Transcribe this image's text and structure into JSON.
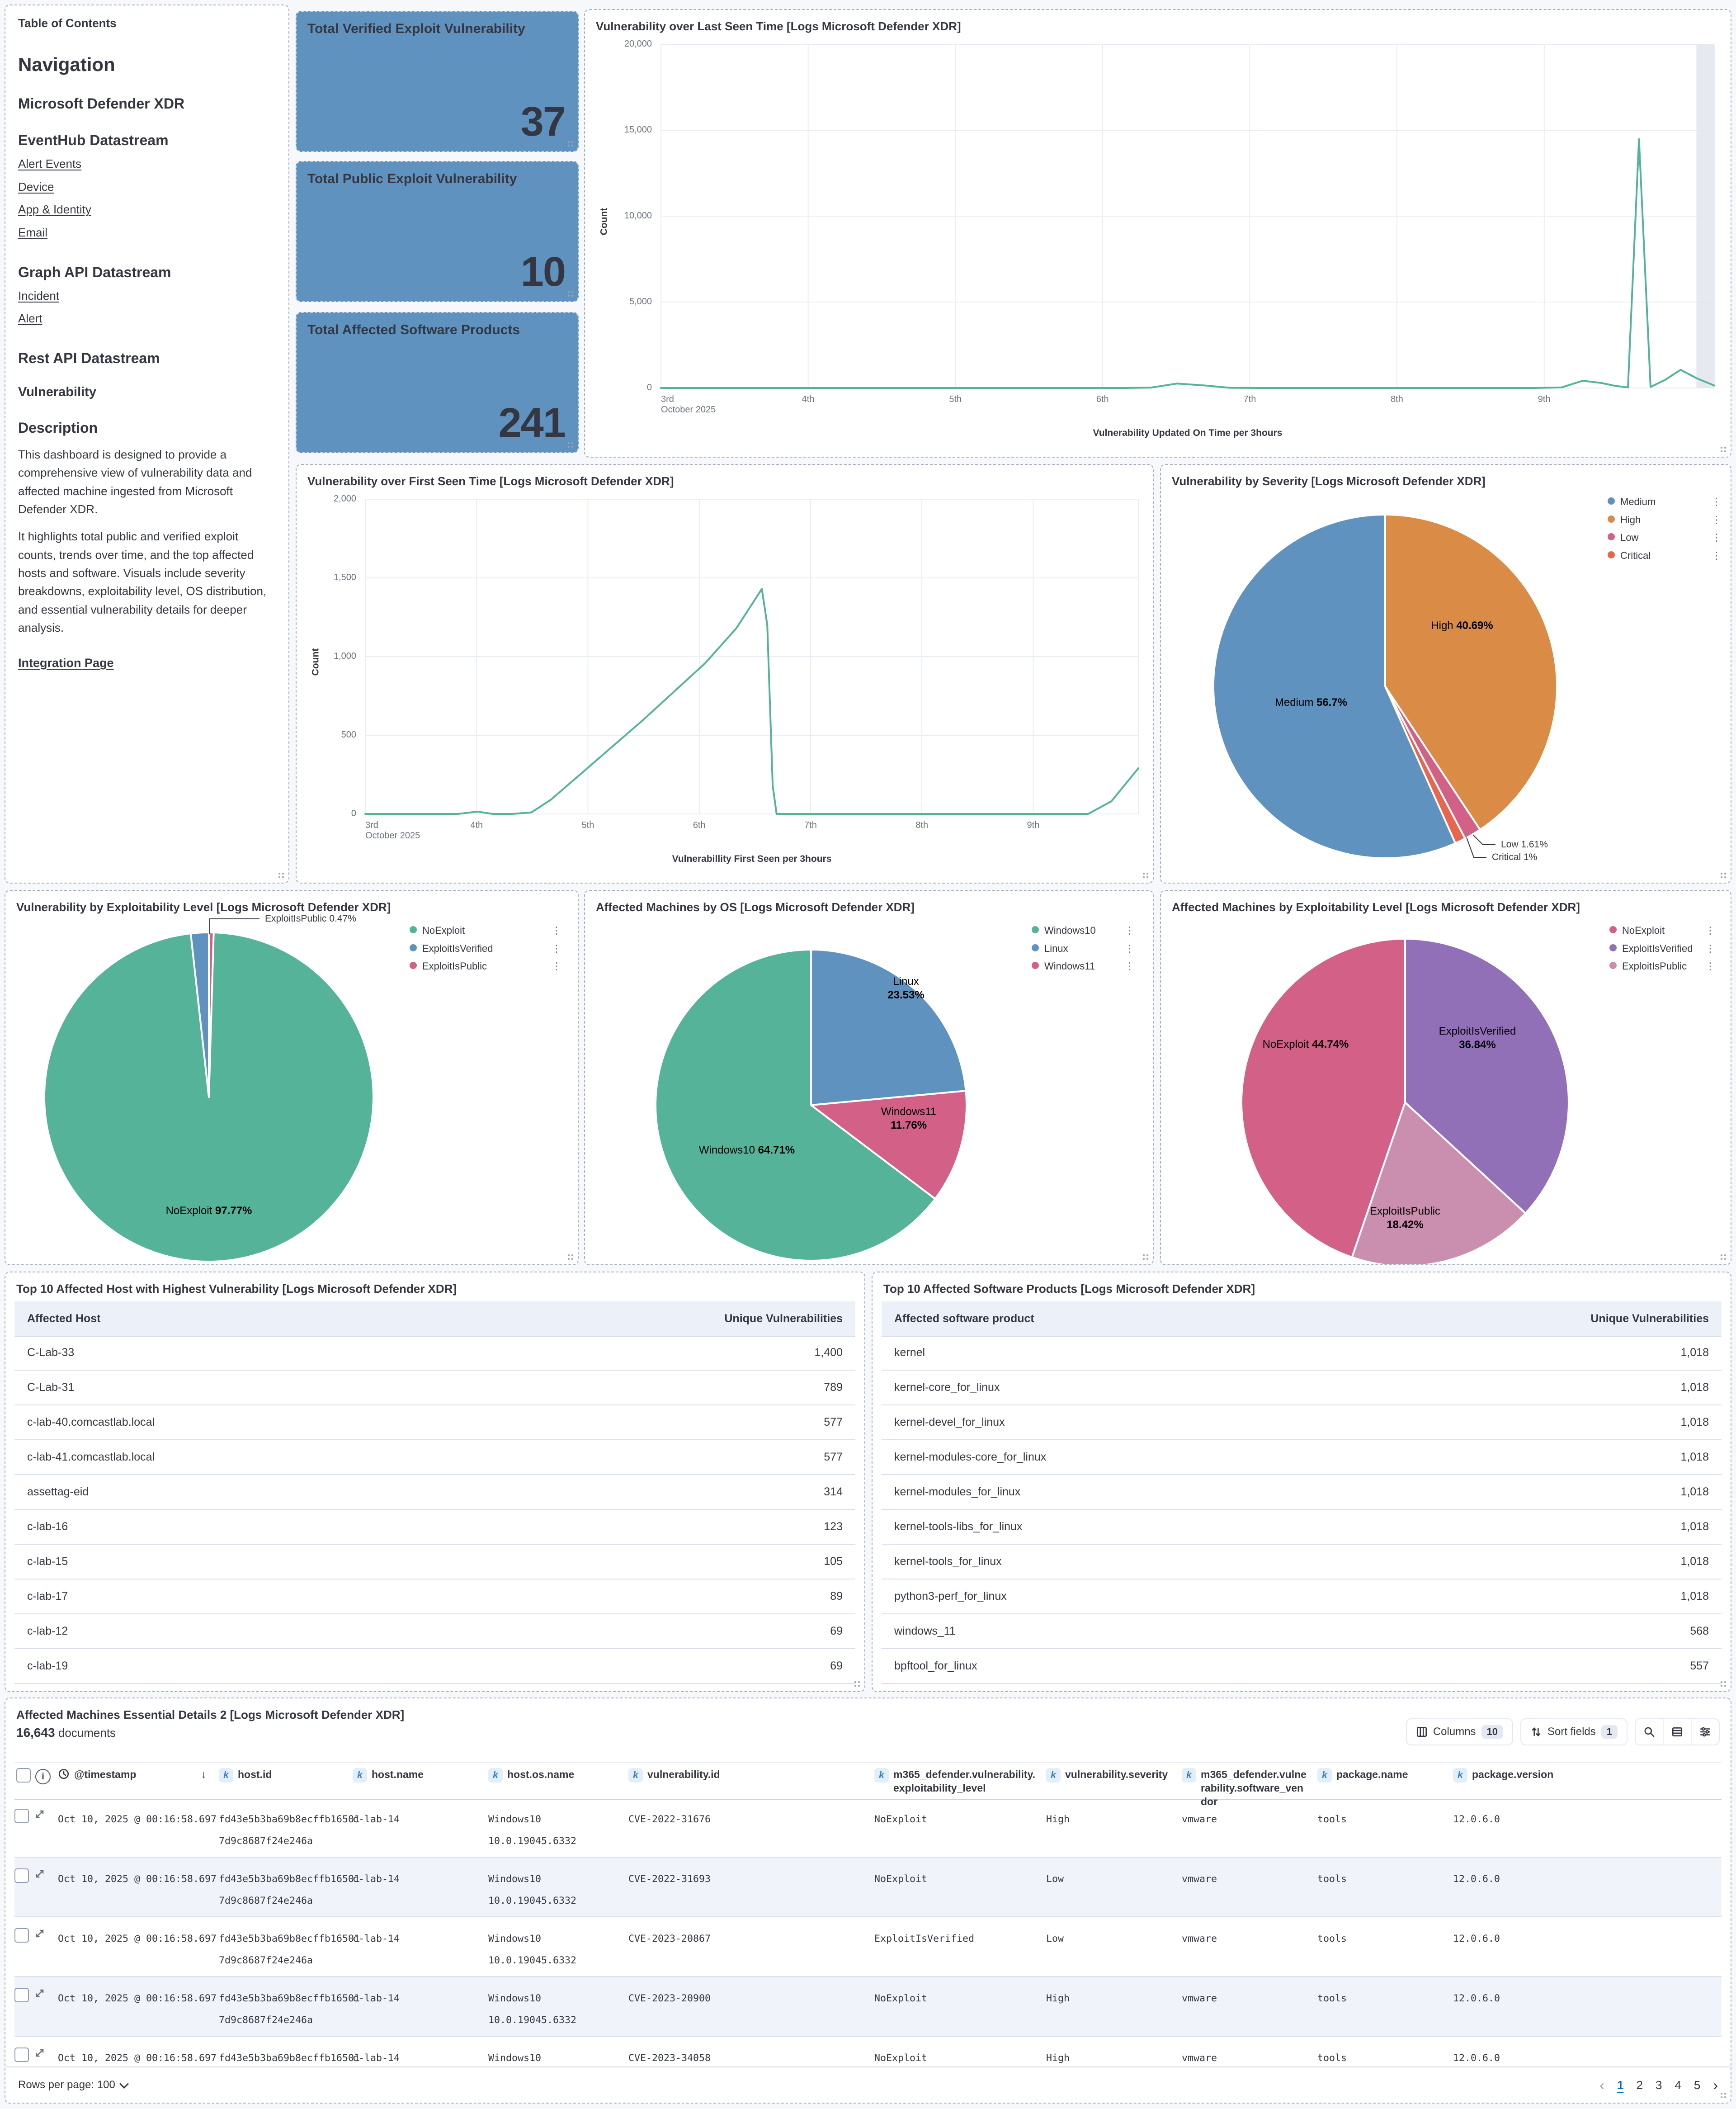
{
  "toc": {
    "panel_title": "Table of Contents",
    "heading": "Navigation",
    "section_defender": "Microsoft Defender XDR",
    "section_eventhub": "EventHub Datastream",
    "eventhub_links": [
      "Alert Events",
      "Device",
      "App & Identity",
      "Email"
    ],
    "section_graph": "Graph API Datastream",
    "graph_links": [
      "Incident",
      "Alert"
    ],
    "section_rest": "Rest API Datastream",
    "sub_vulnerability": "Vulnerability",
    "section_description": "Description",
    "paragraph1": "This dashboard is designed to provide a comprehensive view of vulnerability data and affected machine ingested from Microsoft Defender XDR.",
    "paragraph2": "It highlights total public and verified exploit counts, trends over time, and the top affected hosts and software. Visuals include severity breakdowns, exploitability level, OS distribution, and essential vulnerability details for deeper analysis.",
    "bottom_link": "Integration Page"
  },
  "metric_tiles": [
    {
      "label": "Total Verified Exploit Vulnerability",
      "value": "37"
    },
    {
      "label": "Total Public Exploit Vulnerability",
      "value": "10"
    },
    {
      "label": "Total Affected Software Products",
      "value": "241"
    }
  ],
  "line_charts": {
    "last_seen": {
      "type": "line",
      "title": "Vulnerability over Last Seen Time [Logs Microsoft Defender XDR]",
      "y_label": "Count",
      "x_label": "Vulnerability Updated On Time per 3hours",
      "y_max": 20000,
      "y_ticks": [
        "20,000",
        "15,000",
        "10,000",
        "5,000",
        "0"
      ],
      "x_ticks": [
        {
          "f": 0,
          "label": "3rd",
          "sub": "October 2025"
        },
        {
          "f": 0.1397,
          "label": "4th"
        },
        {
          "f": 0.2795,
          "label": "5th"
        },
        {
          "f": 0.4192,
          "label": "6th"
        },
        {
          "f": 0.559,
          "label": "7th"
        },
        {
          "f": 0.6987,
          "label": "8th"
        },
        {
          "f": 0.8385,
          "label": "9th"
        }
      ],
      "color": "#54B399",
      "partial_band": [
        0.983,
        1.0
      ],
      "points": [
        [
          0,
          0
        ],
        [
          0.05,
          0
        ],
        [
          0.1,
          0
        ],
        [
          0.15,
          0
        ],
        [
          0.2,
          0
        ],
        [
          0.25,
          0
        ],
        [
          0.3,
          0
        ],
        [
          0.35,
          0
        ],
        [
          0.4,
          0
        ],
        [
          0.44,
          0
        ],
        [
          0.465,
          20
        ],
        [
          0.49,
          260
        ],
        [
          0.515,
          150
        ],
        [
          0.54,
          10
        ],
        [
          0.57,
          0
        ],
        [
          0.62,
          0
        ],
        [
          0.66,
          0
        ],
        [
          0.7,
          0
        ],
        [
          0.75,
          0
        ],
        [
          0.8,
          0
        ],
        [
          0.83,
          0
        ],
        [
          0.855,
          30
        ],
        [
          0.875,
          420
        ],
        [
          0.893,
          290
        ],
        [
          0.906,
          120
        ],
        [
          0.918,
          30
        ],
        [
          0.9285,
          14480
        ],
        [
          0.9395,
          60
        ],
        [
          0.9535,
          480
        ],
        [
          0.968,
          1060
        ],
        [
          0.9835,
          560
        ],
        [
          1,
          140
        ]
      ]
    },
    "first_seen": {
      "type": "line",
      "title": "Vulnerability over First Seen Time [Logs Microsoft Defender XDR]",
      "y_label": "Count",
      "x_label": "Vulnerabillity First Seen per 3hours",
      "y_max": 2000,
      "y_ticks": [
        "2,000",
        "1,500",
        "1,000",
        "500",
        "0"
      ],
      "x_ticks": [
        {
          "f": 0,
          "label": "3rd",
          "sub": "October 2025"
        },
        {
          "f": 0.144,
          "label": "4th"
        },
        {
          "f": 0.288,
          "label": "5th"
        },
        {
          "f": 0.432,
          "label": "6th"
        },
        {
          "f": 0.576,
          "label": "7th"
        },
        {
          "f": 0.72,
          "label": "8th"
        },
        {
          "f": 0.864,
          "label": "9th"
        }
      ],
      "color": "#54B399",
      "points": [
        [
          0,
          0
        ],
        [
          0.04,
          0
        ],
        [
          0.08,
          0
        ],
        [
          0.12,
          0
        ],
        [
          0.145,
          15
        ],
        [
          0.165,
          0
        ],
        [
          0.19,
          0
        ],
        [
          0.215,
          10
        ],
        [
          0.24,
          90
        ],
        [
          0.28,
          260
        ],
        [
          0.32,
          430
        ],
        [
          0.36,
          600
        ],
        [
          0.4,
          780
        ],
        [
          0.44,
          960
        ],
        [
          0.48,
          1180
        ],
        [
          0.513,
          1430
        ],
        [
          0.52,
          1200
        ],
        [
          0.527,
          180
        ],
        [
          0.532,
          0
        ],
        [
          0.56,
          0
        ],
        [
          0.6,
          0
        ],
        [
          0.65,
          0
        ],
        [
          0.7,
          0
        ],
        [
          0.75,
          0
        ],
        [
          0.8,
          0
        ],
        [
          0.85,
          0
        ],
        [
          0.9,
          0
        ],
        [
          0.935,
          0
        ],
        [
          0.965,
          80
        ],
        [
          1,
          290
        ]
      ]
    }
  },
  "pie_charts": {
    "severity": {
      "type": "pie",
      "title": "Vulnerability by Severity [Logs Microsoft Defender XDR]",
      "slices": [
        {
          "label": "High",
          "pct": 40.69,
          "color": "#DA8B45"
        },
        {
          "label": "Low",
          "pct": 1.61,
          "color": "#D36086"
        },
        {
          "label": "Critical",
          "pct": 1.0,
          "color": "#E7664C"
        },
        {
          "label": "Medium",
          "pct": 56.7,
          "color": "#6092C0"
        }
      ],
      "legend": [
        {
          "label": "Medium",
          "color": "#6092C0"
        },
        {
          "label": "High",
          "color": "#DA8B45"
        },
        {
          "label": "Low",
          "color": "#D36086"
        },
        {
          "label": "Critical",
          "color": "#E7664C"
        }
      ],
      "inside_labels": [
        {
          "name": "High",
          "pct": "40.69%"
        },
        {
          "name": "Medium",
          "pct": "56.7%"
        }
      ],
      "callout_labels": [
        {
          "name": "Low",
          "pct": "1.61%"
        },
        {
          "name": "Critical",
          "pct": "1%"
        }
      ]
    },
    "exploit_level": {
      "type": "pie",
      "title": "Vulnerability by Exploitability Level [Logs Microsoft Defender XDR]",
      "slices": [
        {
          "label": "ExploitIsPublic",
          "pct": 0.47,
          "color": "#D36086"
        },
        {
          "label": "NoExploit",
          "pct": 97.77,
          "color": "#54B399"
        },
        {
          "label": "ExploitIsVerified",
          "pct": 1.76,
          "color": "#6092C0"
        }
      ],
      "legend": [
        {
          "label": "NoExploit",
          "color": "#54B399"
        },
        {
          "label": "ExploitIsVerified",
          "color": "#6092C0"
        },
        {
          "label": "ExploitIsPublic",
          "color": "#D36086"
        }
      ],
      "inside_labels": [
        {
          "name": "NoExploit",
          "pct": "97.77%"
        }
      ],
      "callout_labels": [
        {
          "name": "ExploitIsPublic",
          "pct": "0.47%"
        }
      ]
    },
    "os": {
      "type": "pie",
      "title": "Affected Machines by OS [Logs Microsoft Defender XDR]",
      "slices": [
        {
          "label": "Linux",
          "pct": 23.53,
          "color": "#6092C0"
        },
        {
          "label": "Windows11",
          "pct": 11.76,
          "color": "#D36086"
        },
        {
          "label": "Windows10",
          "pct": 64.71,
          "color": "#54B399"
        }
      ],
      "legend": [
        {
          "label": "Windows10",
          "color": "#54B399"
        },
        {
          "label": "Linux",
          "color": "#6092C0"
        },
        {
          "label": "Windows11",
          "color": "#D36086"
        }
      ],
      "inside_labels": [
        {
          "name": "Linux",
          "pct": "23.53%",
          "stacked": true
        },
        {
          "name": "Windows11",
          "pct": "11.76%",
          "stacked": true
        },
        {
          "name": "Windows10",
          "pct": "64.71%"
        }
      ],
      "callout_labels": []
    },
    "machines_exploit": {
      "type": "pie",
      "title": "Affected Machines by Exploitability Level [Logs Microsoft Defender XDR]",
      "slices": [
        {
          "label": "ExploitIsVerified",
          "pct": 36.84,
          "color": "#9170B8"
        },
        {
          "label": "ExploitIsPublic",
          "pct": 18.42,
          "color": "#CA8EAE"
        },
        {
          "label": "NoExploit",
          "pct": 44.74,
          "color": "#D36086"
        }
      ],
      "legend": [
        {
          "label": "NoExploit",
          "color": "#D36086"
        },
        {
          "label": "ExploitIsVerified",
          "color": "#9170B8"
        },
        {
          "label": "ExploitIsPublic",
          "color": "#CA8EAE"
        }
      ],
      "inside_labels": [
        {
          "name": "ExploitIsVerified",
          "pct": "36.84%",
          "stacked": true
        },
        {
          "name": "ExploitIsPublic",
          "pct": "18.42%",
          "stacked": true
        },
        {
          "name": "NoExploit",
          "pct": "44.74%"
        }
      ],
      "callout_labels": []
    }
  },
  "host_table": {
    "title": "Top 10 Affected Host with Highest Vulnerability [Logs Microsoft Defender XDR]",
    "col1": "Affected Host",
    "col2": "Unique Vulnerabilities",
    "rows": [
      [
        "C-Lab-33",
        "1,400"
      ],
      [
        "C-Lab-31",
        "789"
      ],
      [
        "c-lab-40.comcastlab.local",
        "577"
      ],
      [
        "c-lab-41.comcastlab.local",
        "577"
      ],
      [
        "assettag-eid",
        "314"
      ],
      [
        "c-lab-16",
        "123"
      ],
      [
        "c-lab-15",
        "105"
      ],
      [
        "c-lab-17",
        "89"
      ],
      [
        "c-lab-12",
        "69"
      ],
      [
        "c-lab-19",
        "69"
      ]
    ]
  },
  "software_table": {
    "title": "Top 10 Affected Software Products [Logs Microsoft Defender XDR]",
    "col1": "Affected software product",
    "col2": "Unique Vulnerabilities",
    "rows": [
      [
        "kernel",
        "1,018"
      ],
      [
        "kernel-core_for_linux",
        "1,018"
      ],
      [
        "kernel-devel_for_linux",
        "1,018"
      ],
      [
        "kernel-modules-core_for_linux",
        "1,018"
      ],
      [
        "kernel-modules_for_linux",
        "1,018"
      ],
      [
        "kernel-tools-libs_for_linux",
        "1,018"
      ],
      [
        "kernel-tools_for_linux",
        "1,018"
      ],
      [
        "python3-perf_for_linux",
        "1,018"
      ],
      [
        "windows_11",
        "568"
      ],
      [
        "bpftool_for_linux",
        "557"
      ]
    ]
  },
  "doc_table": {
    "title": "Affected Machines Essential Details 2 [Logs Microsoft Defender XDR]",
    "doc_count": "16,643",
    "doc_word": "documents",
    "columns_label": "Columns",
    "columns_count": "10",
    "sort_label": "Sort fields",
    "sort_count": "1",
    "columns": [
      {
        "label": "@timestamp",
        "type": "time"
      },
      {
        "label": "host.id",
        "type": "k"
      },
      {
        "label": "host.name",
        "type": "k"
      },
      {
        "label": "host.os.name",
        "type": "k"
      },
      {
        "label": "vulnerability.id",
        "type": "k"
      },
      {
        "label": "m365_defender.vulnerability.exploitability_level",
        "type": "k"
      },
      {
        "label": "vulnerability.severity",
        "type": "k"
      },
      {
        "label": "m365_defender.vulnerability.software_vendor",
        "type": "k"
      },
      {
        "label": "package.name",
        "type": "k"
      },
      {
        "label": "package.version",
        "type": "k"
      }
    ],
    "rows": [
      {
        "timestamp": "Oct 10, 2025 @ 00:16:58.697",
        "host_id": [
          "fd43e5b3ba69b8ecffb16501",
          "7d9c8687f24e246a"
        ],
        "host_name": "c-lab-14",
        "os": [
          "Windows10",
          "10.0.19045.6332"
        ],
        "vuln_id": "CVE-2022-31676",
        "exploit": "NoExploit",
        "severity": "High",
        "vendor": "vmware",
        "package": "tools",
        "version": "12.0.6.0"
      },
      {
        "timestamp": "Oct 10, 2025 @ 00:16:58.697",
        "host_id": [
          "fd43e5b3ba69b8ecffb16501",
          "7d9c8687f24e246a"
        ],
        "host_name": "c-lab-14",
        "os": [
          "Windows10",
          "10.0.19045.6332"
        ],
        "vuln_id": "CVE-2022-31693",
        "exploit": "NoExploit",
        "severity": "Low",
        "vendor": "vmware",
        "package": "tools",
        "version": "12.0.6.0"
      },
      {
        "timestamp": "Oct 10, 2025 @ 00:16:58.697",
        "host_id": [
          "fd43e5b3ba69b8ecffb16501",
          "7d9c8687f24e246a"
        ],
        "host_name": "c-lab-14",
        "os": [
          "Windows10",
          "10.0.19045.6332"
        ],
        "vuln_id": "CVE-2023-20867",
        "exploit": "ExploitIsVerified",
        "severity": "Low",
        "vendor": "vmware",
        "package": "tools",
        "version": "12.0.6.0"
      },
      {
        "timestamp": "Oct 10, 2025 @ 00:16:58.697",
        "host_id": [
          "fd43e5b3ba69b8ecffb16501",
          "7d9c8687f24e246a"
        ],
        "host_name": "c-lab-14",
        "os": [
          "Windows10",
          "10.0.19045.6332"
        ],
        "vuln_id": "CVE-2023-20900",
        "exploit": "NoExploit",
        "severity": "High",
        "vendor": "vmware",
        "package": "tools",
        "version": "12.0.6.0"
      },
      {
        "timestamp": "Oct 10, 2025 @ 00:16:58.697",
        "host_id": [
          "fd43e5b3ba69b8ecffb16501",
          "7d9c8687f24e246a"
        ],
        "host_name": "c-lab-14",
        "os": [
          "Windows10",
          "10.0.19045.6332"
        ],
        "vuln_id": "CVE-2023-34058",
        "exploit": "NoExploit",
        "severity": "High",
        "vendor": "vmware",
        "package": "tools",
        "version": "12.0.6.0"
      }
    ],
    "rows_per_page_label": "Rows per page: 100",
    "pager_prev": "‹",
    "pager_next": "›",
    "pages": [
      "1",
      "2",
      "3",
      "4",
      "5"
    ],
    "active_page": "1"
  },
  "colors": {
    "accent_green": "#54B399",
    "accent_blue": "#6092C0",
    "accent_pink": "#D36086",
    "accent_orange": "#DA8B45",
    "accent_red": "#E7664C",
    "accent_purple": "#9170B8",
    "accent_mauve": "#CA8EAE",
    "link_blue": "#006BB4"
  }
}
